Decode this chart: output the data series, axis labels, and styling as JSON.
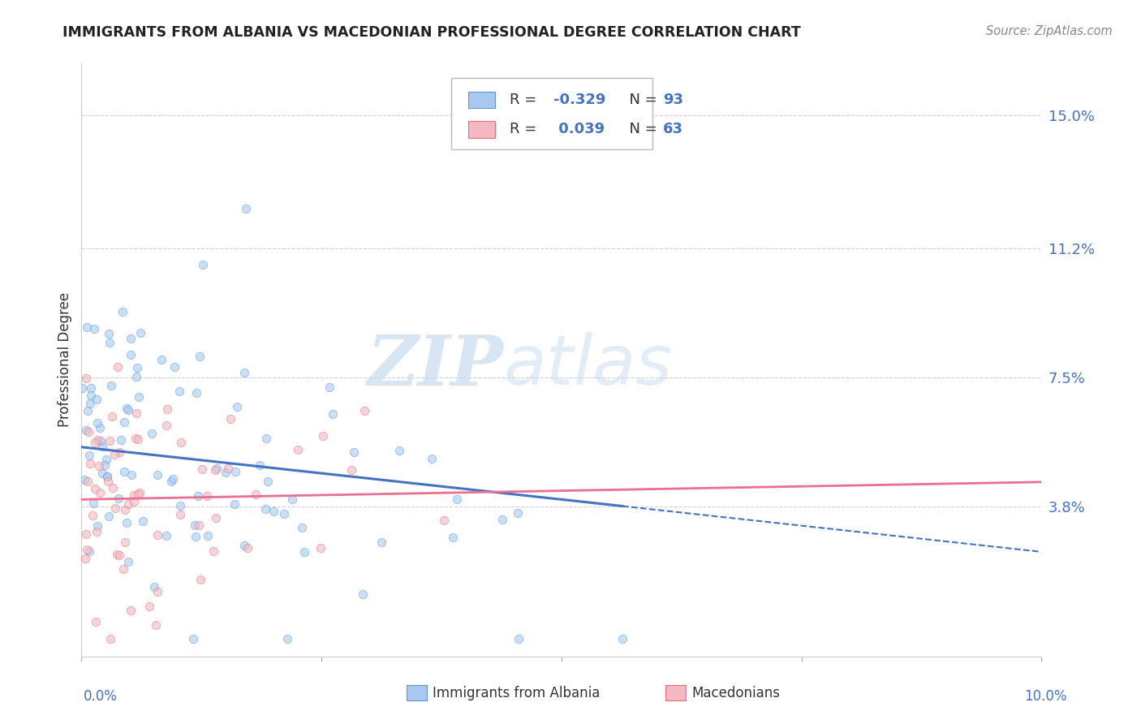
{
  "title": "IMMIGRANTS FROM ALBANIA VS MACEDONIAN PROFESSIONAL DEGREE CORRELATION CHART",
  "source": "Source: ZipAtlas.com",
  "ylabel": "Professional Degree",
  "yticks": [
    "3.8%",
    "7.5%",
    "11.2%",
    "15.0%"
  ],
  "ytick_vals": [
    0.038,
    0.075,
    0.112,
    0.15
  ],
  "xlim": [
    0.0,
    0.1
  ],
  "ylim": [
    -0.005,
    0.165
  ],
  "albania_color": "#A8C8F0",
  "albania_edge": "#5B9BD5",
  "macedonian_color": "#F4B8C0",
  "macedonian_edge": "#E07080",
  "legend_r_albania": "-0.329",
  "legend_n_albania": "93",
  "legend_r_macedonian": "0.039",
  "legend_n_macedonian": "63",
  "albania_trend_color": "#4472C4",
  "macedonian_trend_color": "#E87090",
  "watermark_zip": "ZIP",
  "watermark_atlas": "atlas",
  "albania_seed": 42,
  "macedonian_seed": 77,
  "scatter_size": 55,
  "scatter_alpha": 0.6,
  "grid_color": "#D0D0D0",
  "background_color": "#FFFFFF",
  "tick_color": "#4472C4",
  "label_color": "#333333"
}
